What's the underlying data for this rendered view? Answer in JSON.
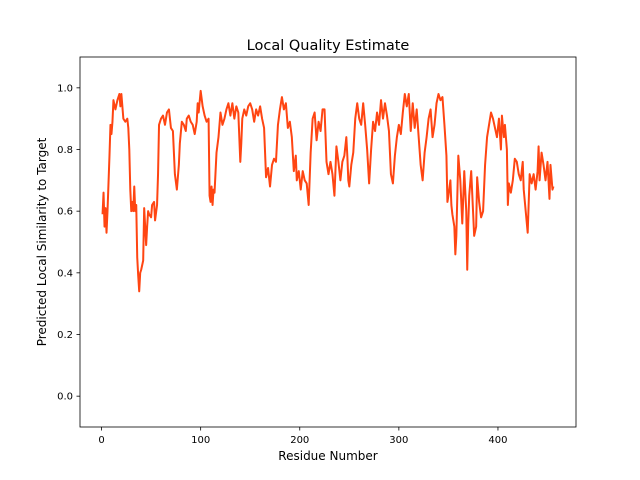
{
  "chart_data": {
    "type": "line",
    "title": "Local Quality Estimate",
    "x_label": "Residue Number",
    "y_label": "Predicted Local Similarity to Target",
    "xlim": [
      -21.75,
      478.75
    ],
    "ylim": [
      -0.1,
      1.1
    ],
    "xticks": [
      0,
      100,
      200,
      300,
      400
    ],
    "yticks": [
      {
        "value": 0,
        "label": "0.0"
      },
      0.2,
      0.4,
      0.6,
      0.8,
      {
        "value": 1,
        "label": "1.0"
      }
    ],
    "grid": false,
    "x": [
      1,
      2,
      3,
      4,
      5,
      6,
      8,
      9,
      10,
      11,
      12,
      14,
      16,
      18,
      19,
      20,
      22,
      24,
      26,
      27,
      28,
      29,
      30,
      31,
      32,
      33,
      34,
      35,
      36,
      37,
      38,
      39,
      40,
      42,
      43,
      44,
      45,
      46,
      47,
      48,
      50,
      51,
      53,
      54,
      56,
      57,
      58,
      60,
      62,
      64,
      66,
      68,
      70,
      72,
      74,
      76,
      78,
      79,
      81,
      83,
      85,
      86,
      88,
      90,
      92,
      94,
      96,
      97,
      98,
      100,
      102,
      104,
      106,
      108,
      109,
      110,
      111,
      112,
      113,
      114,
      116,
      118,
      120,
      122,
      124,
      126,
      128,
      130,
      132,
      134,
      136,
      138,
      140,
      141,
      142,
      144,
      146,
      148,
      150,
      152,
      154,
      156,
      158,
      160,
      162,
      164,
      166,
      168,
      170,
      172,
      174,
      176,
      178,
      180,
      182,
      184,
      186,
      188,
      190,
      192,
      194,
      196,
      197,
      199,
      201,
      203,
      205,
      207,
      209,
      211,
      213,
      215,
      217,
      219,
      221,
      223,
      225,
      227,
      229,
      231,
      233,
      235,
      237,
      239,
      241,
      243,
      245,
      247,
      248,
      249,
      250,
      252,
      254,
      256,
      258,
      260,
      262,
      264,
      266,
      268,
      270,
      272,
      274,
      276,
      278,
      280,
      282,
      284,
      286,
      288,
      290,
      292,
      294,
      296,
      298,
      300,
      302,
      304,
      306,
      308,
      310,
      312,
      314,
      316,
      318,
      320,
      322,
      324,
      326,
      328,
      330,
      332,
      334,
      336,
      338,
      340,
      342,
      344,
      346,
      348,
      349,
      350,
      352,
      353,
      354,
      356,
      357,
      358,
      360,
      362,
      364,
      366,
      368,
      369,
      370,
      371,
      373,
      375,
      376,
      378,
      379,
      381,
      383,
      385,
      387,
      389,
      391,
      393,
      395,
      397,
      399,
      401,
      403,
      404,
      406,
      407,
      409,
      410,
      411,
      413,
      415,
      417,
      419,
      421,
      423,
      425,
      426,
      428,
      430,
      432,
      434,
      436,
      438,
      440,
      441,
      442,
      444,
      446,
      448,
      450,
      452,
      453,
      455,
      456
    ],
    "series": [
      {
        "color": "#ff4512",
        "values": [
          0.59,
          0.66,
          0.55,
          0.61,
          0.53,
          0.6,
          0.78,
          0.88,
          0.85,
          0.89,
          0.96,
          0.93,
          0.96,
          0.98,
          0.94,
          0.98,
          0.9,
          0.89,
          0.9,
          0.87,
          0.8,
          0.67,
          0.6,
          0.63,
          0.6,
          0.68,
          0.6,
          0.62,
          0.45,
          0.39,
          0.34,
          0.4,
          0.41,
          0.44,
          0.61,
          0.55,
          0.49,
          0.55,
          0.6,
          0.59,
          0.58,
          0.62,
          0.63,
          0.57,
          0.62,
          0.72,
          0.88,
          0.9,
          0.91,
          0.88,
          0.92,
          0.93,
          0.87,
          0.86,
          0.72,
          0.67,
          0.75,
          0.82,
          0.89,
          0.88,
          0.86,
          0.9,
          0.91,
          0.89,
          0.88,
          0.85,
          0.89,
          0.95,
          0.92,
          0.99,
          0.94,
          0.91,
          0.89,
          0.9,
          0.65,
          0.63,
          0.68,
          0.62,
          0.67,
          0.66,
          0.79,
          0.84,
          0.92,
          0.88,
          0.9,
          0.93,
          0.95,
          0.91,
          0.95,
          0.9,
          0.94,
          0.92,
          0.76,
          0.82,
          0.9,
          0.93,
          0.91,
          0.94,
          0.95,
          0.93,
          0.89,
          0.93,
          0.91,
          0.94,
          0.9,
          0.87,
          0.71,
          0.74,
          0.68,
          0.75,
          0.77,
          0.76,
          0.88,
          0.93,
          0.97,
          0.93,
          0.95,
          0.87,
          0.89,
          0.84,
          0.73,
          0.78,
          0.7,
          0.73,
          0.67,
          0.73,
          0.7,
          0.69,
          0.62,
          0.79,
          0.9,
          0.92,
          0.83,
          0.89,
          0.86,
          0.93,
          0.93,
          0.76,
          0.72,
          0.76,
          0.72,
          0.65,
          0.81,
          0.76,
          0.7,
          0.76,
          0.78,
          0.84,
          0.78,
          0.7,
          0.68,
          0.75,
          0.79,
          0.9,
          0.95,
          0.9,
          0.88,
          0.95,
          0.88,
          0.8,
          0.69,
          0.8,
          0.89,
          0.86,
          0.92,
          0.88,
          0.96,
          0.9,
          0.95,
          0.91,
          0.86,
          0.72,
          0.69,
          0.78,
          0.84,
          0.88,
          0.85,
          0.92,
          0.98,
          0.94,
          0.98,
          0.86,
          0.95,
          0.87,
          0.93,
          0.84,
          0.75,
          0.7,
          0.79,
          0.84,
          0.9,
          0.93,
          0.84,
          0.88,
          0.95,
          0.98,
          0.96,
          0.97,
          0.88,
          0.78,
          0.63,
          0.65,
          0.7,
          0.62,
          0.59,
          0.55,
          0.46,
          0.52,
          0.78,
          0.7,
          0.56,
          0.73,
          0.6,
          0.41,
          0.56,
          0.65,
          0.73,
          0.59,
          0.52,
          0.55,
          0.71,
          0.63,
          0.58,
          0.6,
          0.75,
          0.84,
          0.88,
          0.92,
          0.9,
          0.87,
          0.84,
          0.9,
          0.8,
          0.91,
          0.84,
          0.88,
          0.8,
          0.62,
          0.69,
          0.66,
          0.7,
          0.77,
          0.76,
          0.72,
          0.7,
          0.76,
          0.67,
          0.6,
          0.53,
          0.72,
          0.69,
          0.72,
          0.67,
          0.73,
          0.81,
          0.7,
          0.79,
          0.75,
          0.7,
          0.76,
          0.64,
          0.75,
          0.67,
          0.68
        ]
      }
    ]
  }
}
